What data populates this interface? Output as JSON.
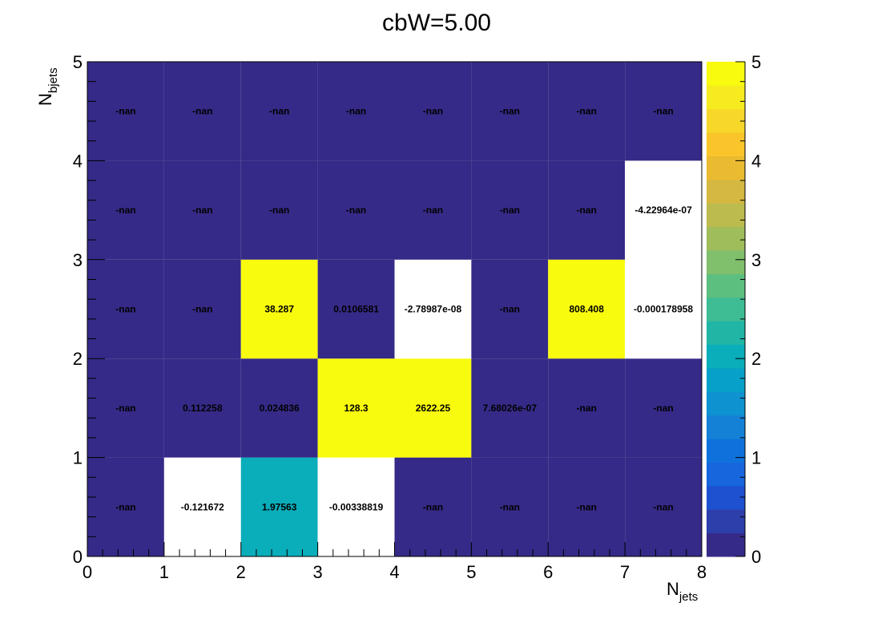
{
  "chart_data": {
    "type": "heatmap",
    "title": "cbW=5.00",
    "xlabel_main": "N",
    "xlabel_sub": "jets",
    "ylabel_main": "N",
    "ylabel_sub": "bjets",
    "xlim": [
      0,
      8
    ],
    "ylim": [
      0,
      5
    ],
    "x_ticks": [
      "0",
      "1",
      "2",
      "3",
      "4",
      "5",
      "6",
      "7",
      "8"
    ],
    "y_ticks": [
      "0",
      "1",
      "2",
      "3",
      "4",
      "5"
    ],
    "colorbar_range": [
      0,
      5
    ],
    "colorbar_ticks": [
      "0",
      "1",
      "2",
      "3",
      "4",
      "5"
    ],
    "colormap": "parula",
    "colors": {
      "low": "#352a87",
      "high": "#f9fb0e",
      "nan_fill": "#352a87",
      "underflow": "#ffffff"
    },
    "cells": [
      {
        "x": 0,
        "y": 0,
        "label": "-nan",
        "value": null
      },
      {
        "x": 1,
        "y": 0,
        "label": "-0.121672",
        "value": -0.121672
      },
      {
        "x": 2,
        "y": 0,
        "label": "1.97563",
        "value": 1.97563
      },
      {
        "x": 3,
        "y": 0,
        "label": "-0.00338819",
        "value": -0.00338819
      },
      {
        "x": 4,
        "y": 0,
        "label": "-nan",
        "value": null
      },
      {
        "x": 5,
        "y": 0,
        "label": "-nan",
        "value": null
      },
      {
        "x": 6,
        "y": 0,
        "label": "-nan",
        "value": null
      },
      {
        "x": 7,
        "y": 0,
        "label": "-nan",
        "value": null
      },
      {
        "x": 0,
        "y": 1,
        "label": "-nan",
        "value": null
      },
      {
        "x": 1,
        "y": 1,
        "label": "0.112258",
        "value": 0.112258
      },
      {
        "x": 2,
        "y": 1,
        "label": "0.024836",
        "value": 0.024836
      },
      {
        "x": 3,
        "y": 1,
        "label": "128.3",
        "value": 128.3
      },
      {
        "x": 4,
        "y": 1,
        "label": "2622.25",
        "value": 2622.25
      },
      {
        "x": 5,
        "y": 1,
        "label": "7.68026e-07",
        "value": 7.68026e-07
      },
      {
        "x": 6,
        "y": 1,
        "label": "-nan",
        "value": null
      },
      {
        "x": 7,
        "y": 1,
        "label": "-nan",
        "value": null
      },
      {
        "x": 0,
        "y": 2,
        "label": "-nan",
        "value": null
      },
      {
        "x": 1,
        "y": 2,
        "label": "-nan",
        "value": null
      },
      {
        "x": 2,
        "y": 2,
        "label": "38.287",
        "value": 38.287
      },
      {
        "x": 3,
        "y": 2,
        "label": "0.0106581",
        "value": 0.0106581
      },
      {
        "x": 4,
        "y": 2,
        "label": "-2.78987e-08",
        "value": -2.78987e-08
      },
      {
        "x": 5,
        "y": 2,
        "label": "-nan",
        "value": null
      },
      {
        "x": 6,
        "y": 2,
        "label": "808.408",
        "value": 808.408
      },
      {
        "x": 7,
        "y": 2,
        "label": "-0.000178958",
        "value": -0.000178958
      },
      {
        "x": 0,
        "y": 3,
        "label": "-nan",
        "value": null
      },
      {
        "x": 1,
        "y": 3,
        "label": "-nan",
        "value": null
      },
      {
        "x": 2,
        "y": 3,
        "label": "-nan",
        "value": null
      },
      {
        "x": 3,
        "y": 3,
        "label": "-nan",
        "value": null
      },
      {
        "x": 4,
        "y": 3,
        "label": "-nan",
        "value": null
      },
      {
        "x": 5,
        "y": 3,
        "label": "-nan",
        "value": null
      },
      {
        "x": 6,
        "y": 3,
        "label": "-nan",
        "value": null
      },
      {
        "x": 7,
        "y": 3,
        "label": "-4.22964e-07",
        "value": -4.22964e-07
      },
      {
        "x": 0,
        "y": 4,
        "label": "-nan",
        "value": null
      },
      {
        "x": 1,
        "y": 4,
        "label": "-nan",
        "value": null
      },
      {
        "x": 2,
        "y": 4,
        "label": "-nan",
        "value": null
      },
      {
        "x": 3,
        "y": 4,
        "label": "-nan",
        "value": null
      },
      {
        "x": 4,
        "y": 4,
        "label": "-nan",
        "value": null
      },
      {
        "x": 5,
        "y": 4,
        "label": "-nan",
        "value": null
      },
      {
        "x": 6,
        "y": 4,
        "label": "-nan",
        "value": null
      },
      {
        "x": 7,
        "y": 4,
        "label": "-nan",
        "value": null
      }
    ]
  }
}
